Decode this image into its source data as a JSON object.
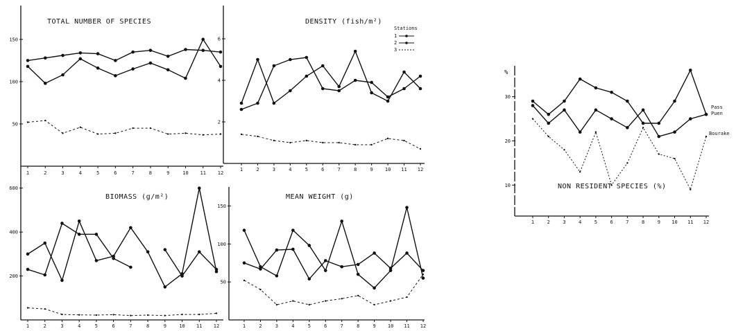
{
  "charts": [
    {
      "id": "total-species",
      "title": "TOTAL NUMBER OF SPECIES",
      "xcats": [
        "1",
        "2",
        "3",
        "4",
        "5",
        "6",
        "7",
        "8",
        "9",
        "10",
        "11",
        "12"
      ],
      "ylim": [
        0,
        190
      ],
      "yticks": [
        {
          "v": 50,
          "label": "50"
        },
        {
          "v": 100,
          "label": "100"
        },
        {
          "v": 150,
          "label": "150"
        }
      ],
      "xlabels_show": true,
      "series": [
        {
          "style": "solid",
          "values": [
            125,
            128,
            131,
            134,
            133,
            125,
            135,
            137,
            130,
            138,
            137,
            135
          ]
        },
        {
          "style": "solid",
          "values": [
            118,
            98,
            108,
            127,
            116,
            107,
            115,
            122,
            114,
            104,
            150,
            118
          ]
        },
        {
          "style": "dashed",
          "values": [
            52,
            54,
            39,
            46,
            38,
            39,
            45,
            45,
            38,
            39,
            37,
            38
          ]
        }
      ]
    },
    {
      "id": "density",
      "title": "DENSITY (fish/m²)",
      "xcats": [
        "1",
        "2",
        "3",
        "4",
        "5",
        "6",
        "7",
        "8",
        "9",
        "10",
        "11",
        "12"
      ],
      "ylim": [
        0,
        7.6
      ],
      "yticks": [
        {
          "v": 2,
          "label": "2"
        },
        {
          "v": 4,
          "label": "4"
        },
        {
          "v": 6,
          "label": "6"
        }
      ],
      "xlabels_show": true,
      "legend": {
        "title": "Stations",
        "entries": [
          "1",
          "2",
          "3"
        ]
      },
      "series": [
        {
          "style": "solid",
          "values": [
            2.9,
            5.0,
            2.9,
            3.5,
            4.2,
            4.7,
            3.7,
            5.4,
            3.4,
            3.0,
            4.4,
            3.6
          ]
        },
        {
          "style": "solid",
          "values": [
            2.6,
            2.9,
            4.7,
            5.0,
            5.1,
            3.6,
            3.5,
            4.0,
            3.9,
            3.2,
            3.6,
            4.2
          ]
        },
        {
          "style": "dashed",
          "values": [
            1.4,
            1.3,
            1.1,
            1.0,
            1.1,
            1.0,
            1.0,
            0.9,
            0.9,
            1.2,
            1.1,
            0.7
          ]
        }
      ]
    },
    {
      "id": "biomass",
      "title": "BIOMASS (g/m²)",
      "xcats": [
        "1",
        "2",
        "3",
        "4",
        "5",
        "6",
        "7",
        "8",
        "9",
        "10",
        "11",
        "12"
      ],
      "ylim": [
        0,
        700
      ],
      "yticks": [
        {
          "v": 200,
          "label": "200"
        },
        {
          "v": 400,
          "label": "400"
        },
        {
          "v": 600,
          "label": "600"
        }
      ],
      "xlabels_show": true,
      "series": [
        {
          "style": "solid",
          "values": [
            300,
            350,
            180,
            450,
            270,
            290,
            420,
            310,
            150,
            210,
            600,
            220
          ]
        },
        {
          "style": "solid",
          "values": [
            230,
            205,
            440,
            390,
            390,
            280,
            240,
            null,
            320,
            200,
            310,
            230
          ]
        },
        {
          "style": "dashed",
          "values": [
            55,
            50,
            25,
            23,
            22,
            24,
            20,
            22,
            20,
            25,
            25,
            30
          ]
        }
      ]
    },
    {
      "id": "mean-weight",
      "title": "MEAN WEIGHT (g)",
      "xcats": [
        "1",
        "2",
        "3",
        "4",
        "5",
        "6",
        "7",
        "8",
        "9",
        "10",
        "11",
        "12"
      ],
      "ylim": [
        0,
        175
      ],
      "yticks": [
        {
          "v": 50,
          "label": "50"
        },
        {
          "v": 100,
          "label": "100"
        },
        {
          "v": 150,
          "label": "150"
        }
      ],
      "xlabels_show": true,
      "series": [
        {
          "style": "solid",
          "values": [
            118,
            70,
            58,
            118,
            98,
            65,
            130,
            60,
            42,
            65,
            148,
            55
          ]
        },
        {
          "style": "solid",
          "values": [
            75,
            67,
            92,
            93,
            54,
            78,
            70,
            73,
            88,
            68,
            88,
            65
          ]
        },
        {
          "style": "dashed",
          "values": [
            52,
            40,
            20,
            25,
            20,
            25,
            28,
            32,
            20,
            25,
            30,
            60
          ]
        }
      ]
    },
    {
      "id": "non-resident",
      "title": "NON RESIDENT SPECIES (%)",
      "xcats": [
        "1",
        "2",
        "3",
        "4",
        "5",
        "6",
        "7",
        "8",
        "9",
        "10",
        "11",
        "12"
      ],
      "ylim": [
        3,
        37
      ],
      "yticks": [
        {
          "v": 10,
          "label": "10"
        },
        {
          "v": 20,
          "label": "20"
        },
        {
          "v": 30,
          "label": "30"
        }
      ],
      "ylabel": "%",
      "xlabels_show": true,
      "end_labels": [
        "Pass",
        "Puen",
        "Bourake"
      ],
      "series": [
        {
          "style": "solid",
          "values": [
            29,
            26,
            29,
            34,
            32,
            31,
            29,
            24,
            24,
            29,
            36,
            26
          ]
        },
        {
          "style": "solid",
          "values": [
            28,
            24,
            27,
            22,
            27,
            25,
            23,
            27,
            21,
            22,
            25,
            26
          ]
        },
        {
          "style": "dotted",
          "values": [
            25,
            21,
            18,
            13,
            22,
            10,
            15,
            23,
            17,
            16,
            9,
            21
          ]
        }
      ]
    }
  ]
}
